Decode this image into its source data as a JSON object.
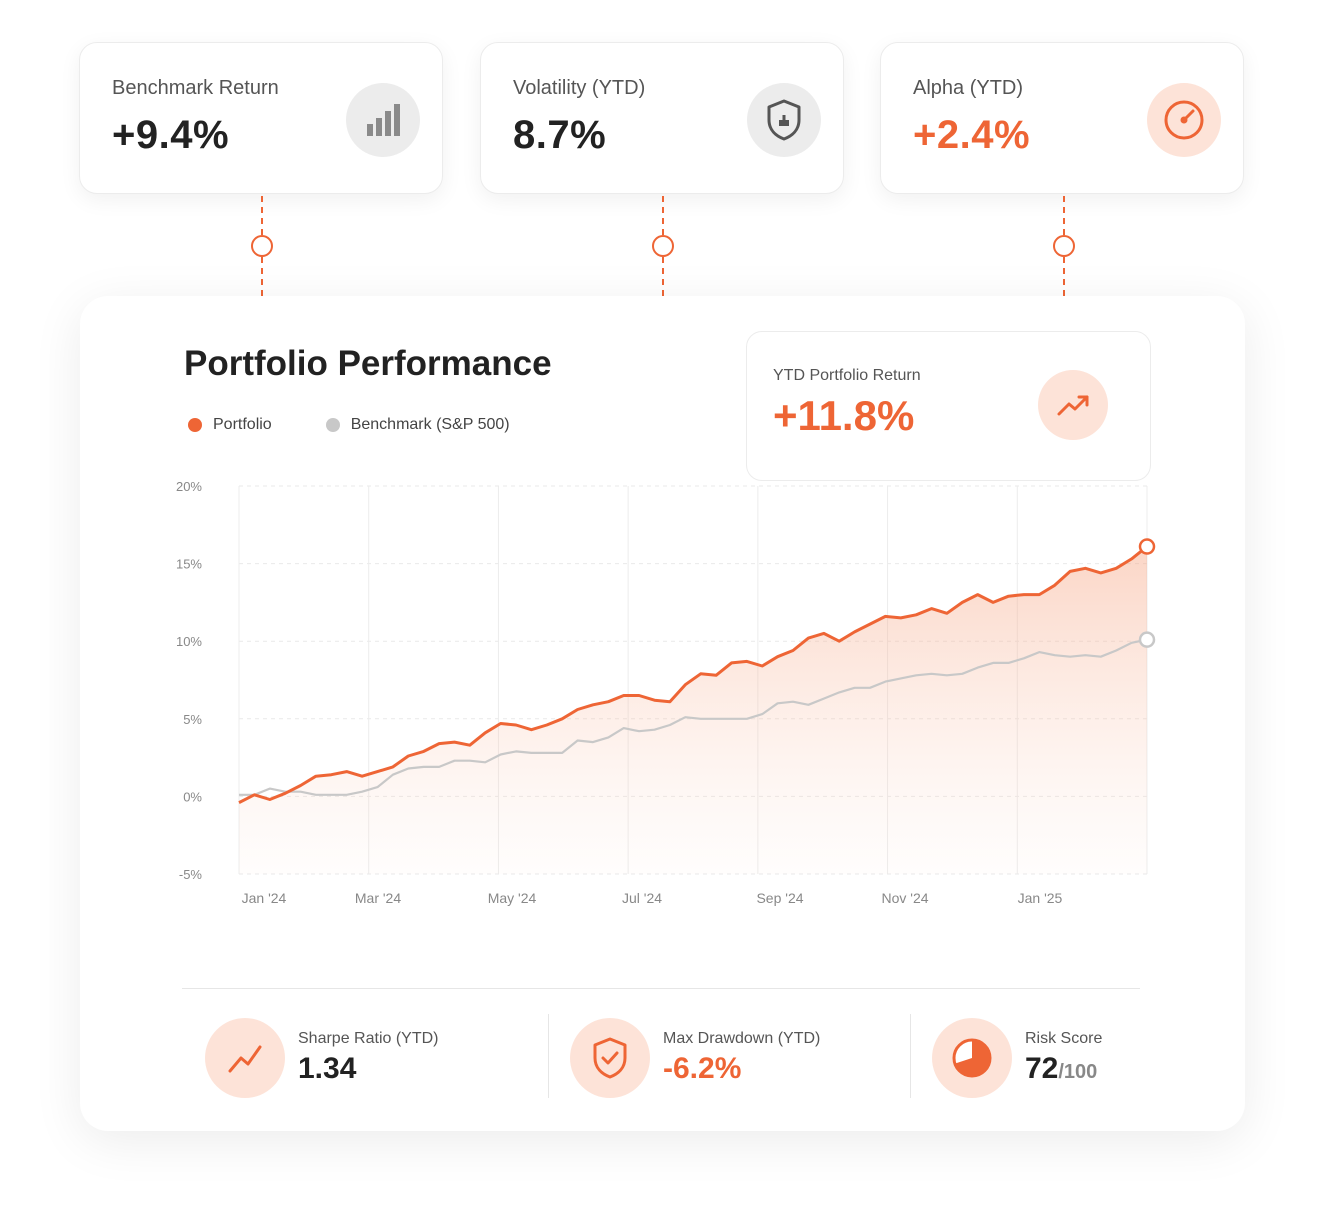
{
  "kpis": [
    {
      "label": "Benchmark Return",
      "value": "+9.4%",
      "icon": "bar-chart-icon"
    },
    {
      "label": "Volatility (YTD)",
      "value": "8.7%",
      "icon": "shield-icon"
    },
    {
      "label": "Alpha (YTD)",
      "value": "+2.4%",
      "icon": "gauge-icon"
    }
  ],
  "colors": {
    "accent": "#ee6535",
    "benchmark": "#c8c8c8",
    "accent_soft": "#fde3d8"
  },
  "card": {
    "title": "Portfolio Performance",
    "ytd": {
      "label": "YTD Portfolio Return",
      "value": "+11.8%",
      "icon": "trending-up-icon"
    }
  },
  "chart_data": {
    "type": "line",
    "y_ticks": [
      "20%",
      "15%",
      "10%",
      "5%",
      "0%",
      "-5%"
    ],
    "ylim": [
      -5,
      20
    ],
    "x_labels": [
      "Jan '24",
      "Mar '24",
      "May '24",
      "Jul '24",
      "Sep '24",
      "Nov '24",
      "Jan '25"
    ],
    "grid": true,
    "legend_position": "top-left",
    "series": [
      {
        "name": "Portfolio",
        "values": [
          -0.4,
          0.1,
          -0.2,
          0.2,
          0.7,
          1.3,
          1.4,
          1.6,
          1.3,
          1.6,
          1.9,
          2.6,
          2.9,
          3.4,
          3.5,
          3.3,
          4.1,
          4.7,
          4.6,
          4.3,
          4.6,
          5.0,
          5.6,
          5.9,
          6.1,
          6.5,
          6.5,
          6.2,
          6.1,
          7.2,
          7.9,
          7.8,
          8.6,
          8.7,
          8.4,
          9.0,
          9.4,
          10.2,
          10.5,
          10.0,
          10.6,
          11.1,
          11.6,
          11.5,
          11.7,
          12.1,
          11.8,
          12.5,
          13.0,
          12.5,
          12.9,
          13.0,
          13.0,
          13.6,
          14.5,
          14.7,
          14.4,
          14.7,
          15.3,
          16.1
        ]
      },
      {
        "name": "Benchmark (S&P 500)",
        "values": [
          0.1,
          0.1,
          0.5,
          0.3,
          0.3,
          0.1,
          0.1,
          0.1,
          0.3,
          0.6,
          1.4,
          1.8,
          1.9,
          1.9,
          2.3,
          2.3,
          2.2,
          2.7,
          2.9,
          2.8,
          2.8,
          2.8,
          3.6,
          3.5,
          3.8,
          4.4,
          4.2,
          4.3,
          4.6,
          5.1,
          5.0,
          5.0,
          5.0,
          5.0,
          5.3,
          6.0,
          6.1,
          5.9,
          6.3,
          6.7,
          7.0,
          7.0,
          7.4,
          7.6,
          7.8,
          7.9,
          7.8,
          7.9,
          8.3,
          8.6,
          8.6,
          8.9,
          9.3,
          9.1,
          9.0,
          9.1,
          9.0,
          9.4,
          9.9,
          10.1
        ]
      }
    ]
  },
  "stats": [
    {
      "label": "Sharpe Ratio (YTD)",
      "value": "1.34",
      "suffix": "",
      "icon": "trend-line-icon"
    },
    {
      "label": "Max Drawdown (YTD)",
      "value": "-6.2%",
      "suffix": "",
      "icon": "shield-check-icon"
    },
    {
      "label": "Risk Score",
      "value": "72",
      "suffix": "/100",
      "icon": "pie-chart-icon"
    }
  ]
}
